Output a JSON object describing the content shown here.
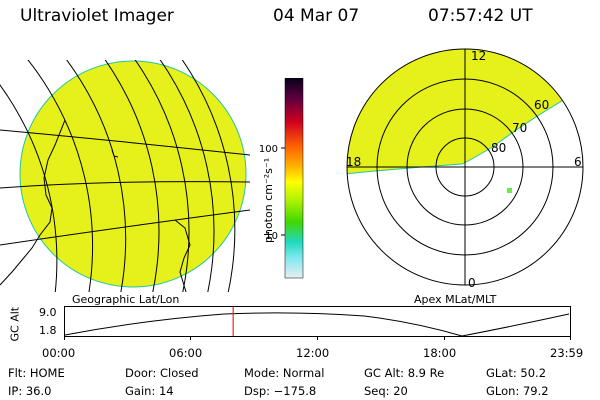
{
  "header": {
    "instrument": "Ultraviolet Imager",
    "date": "04 Mar 07",
    "time": "07:57:42 UT"
  },
  "colorbar": {
    "unit_label": "photon cm⁻²s⁻¹",
    "ticks": [
      "100",
      "10"
    ]
  },
  "panels": {
    "left_label": "Geographic Lat/Lon",
    "right_label": "Apex MLat/MLT"
  },
  "polar_labels": {
    "mlt_top": "12",
    "mlt_left": "18",
    "mlt_right": "6",
    "mlt_bottom": "0",
    "lat_60": "60",
    "lat_70": "70",
    "lat_80": "80"
  },
  "timeline": {
    "axis_title": "GC Alt",
    "y_ticks": [
      "9.0",
      "1.8"
    ],
    "x_ticks": [
      "00:00",
      "06:00",
      "12:00",
      "18:00",
      "23:59"
    ],
    "current_time_fraction": 0.333
  },
  "status": {
    "flt": "Flt: HOME",
    "ip": "IP: 36.0",
    "door": "Door: Closed",
    "gain": "Gain: 14",
    "mode": "Mode: Normal",
    "dsp": "Dsp: −175.8",
    "gcalt": "GC Alt: 8.9 Re",
    "seq": "Seq: 20",
    "glat": "GLat: 50.2",
    "glon": "GLon: 79.2"
  },
  "colors": {
    "emission": "#e6f01a",
    "limb": "#22c8a0",
    "marker": "#ff2020",
    "spot": "#66ee44"
  }
}
